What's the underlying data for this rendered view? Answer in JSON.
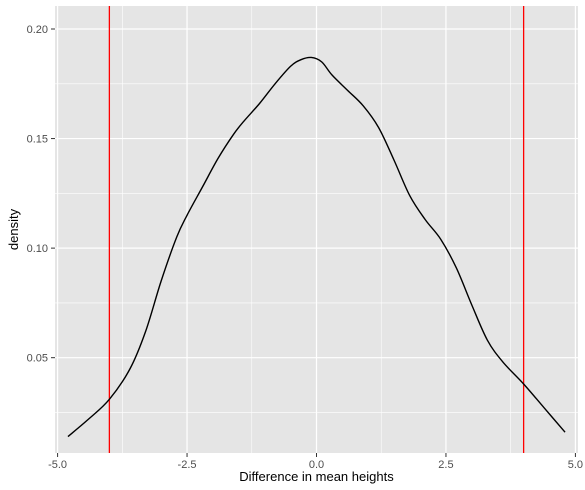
{
  "chart_data": {
    "type": "line",
    "title": "",
    "xlabel": "Difference in mean heights",
    "ylabel": "density",
    "xlim": [
      -5.05,
      5.05
    ],
    "ylim": [
      0.0065,
      0.2105
    ],
    "x_ticks": [
      -5.0,
      -2.5,
      0.0,
      2.5,
      5.0
    ],
    "x_tick_labels": [
      "-5.0",
      "-2.5",
      "0.0",
      "2.5",
      "5.0"
    ],
    "y_ticks": [
      0.05,
      0.1,
      0.15,
      0.2
    ],
    "y_tick_labels": [
      "0.05",
      "0.10",
      "0.15",
      "0.20"
    ],
    "grid": true,
    "series": [
      {
        "values_x": [
          -4.8,
          -4.4,
          -4.0,
          -3.6,
          -3.3,
          -3.0,
          -2.7,
          -2.5,
          -2.2,
          -1.9,
          -1.6,
          -1.4,
          -1.1,
          -0.8,
          -0.5,
          -0.3,
          -0.1,
          0.1,
          0.3,
          0.6,
          0.9,
          1.2,
          1.5,
          1.8,
          2.1,
          2.4,
          2.7,
          3.0,
          3.3,
          3.6,
          4.0,
          4.4,
          4.8
        ],
        "values_y": [
          0.014,
          0.022,
          0.031,
          0.045,
          0.062,
          0.085,
          0.105,
          0.115,
          0.128,
          0.141,
          0.152,
          0.158,
          0.166,
          0.175,
          0.183,
          0.186,
          0.187,
          0.185,
          0.179,
          0.172,
          0.165,
          0.155,
          0.14,
          0.124,
          0.113,
          0.104,
          0.091,
          0.074,
          0.058,
          0.048,
          0.038,
          0.027,
          0.016
        ],
        "color": "#000000"
      }
    ],
    "vlines": [
      {
        "x": -4.0,
        "color": "#ff0000"
      },
      {
        "x": 4.0,
        "color": "#ff0000"
      }
    ],
    "panel_background": "#e5e5e5",
    "grid_color": "#ffffff"
  }
}
